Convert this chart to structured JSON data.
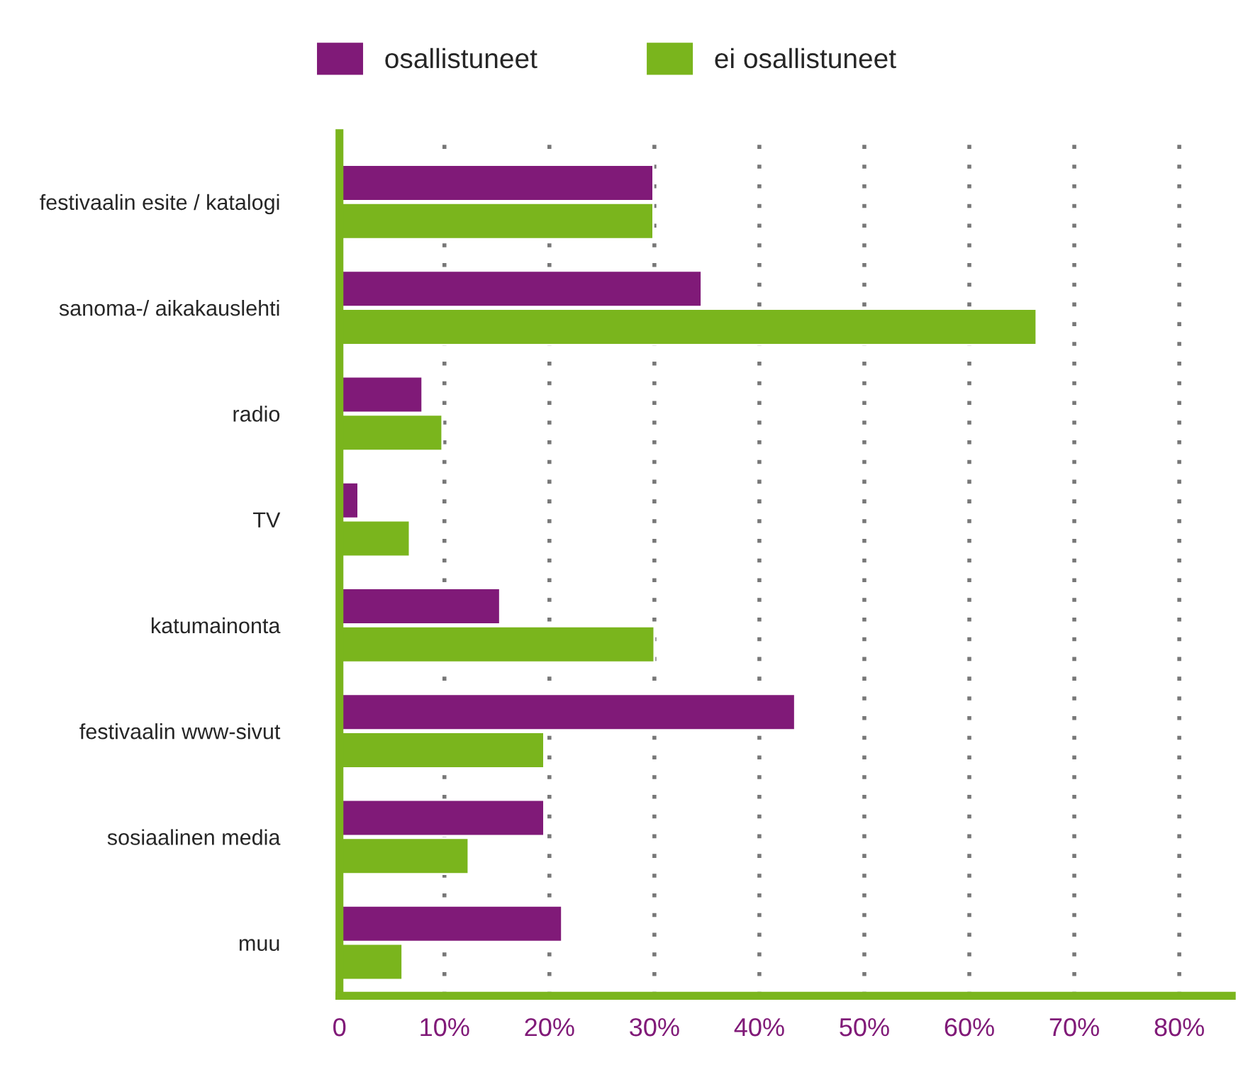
{
  "chart_data": {
    "type": "bar",
    "orientation": "horizontal",
    "categories": [
      "festivaalin esite / katalogi",
      "sanoma-/ aikakauslehti",
      "radio",
      "TV",
      "katumainonta",
      "festivaalin www-sivut",
      "sosiaalinen media",
      "muu"
    ],
    "series": [
      {
        "name": "osallistuneet",
        "color": "#801a78",
        "values": [
          29.9,
          34.5,
          7.9,
          1.8,
          15.3,
          43.4,
          19.5,
          21.2
        ]
      },
      {
        "name": "ei osallistuneet",
        "color": "#7ab51d",
        "values": [
          29.9,
          66.4,
          9.8,
          6.7,
          30,
          19.5,
          12.3,
          6.0
        ]
      }
    ],
    "xlim": [
      0,
      85
    ],
    "xticks": [
      0,
      {
        "value": 10,
        "label": "10%"
      },
      {
        "value": 20,
        "label": "20%"
      },
      {
        "value": 30,
        "label": "30%"
      },
      {
        "value": 40,
        "label": "40%"
      },
      {
        "value": 50,
        "label": "50%"
      },
      {
        "value": 60,
        "label": "60%"
      },
      {
        "value": 70,
        "label": "70%"
      },
      {
        "value": 80,
        "label": "80%"
      }
    ],
    "grid": "x",
    "legend": "top"
  }
}
